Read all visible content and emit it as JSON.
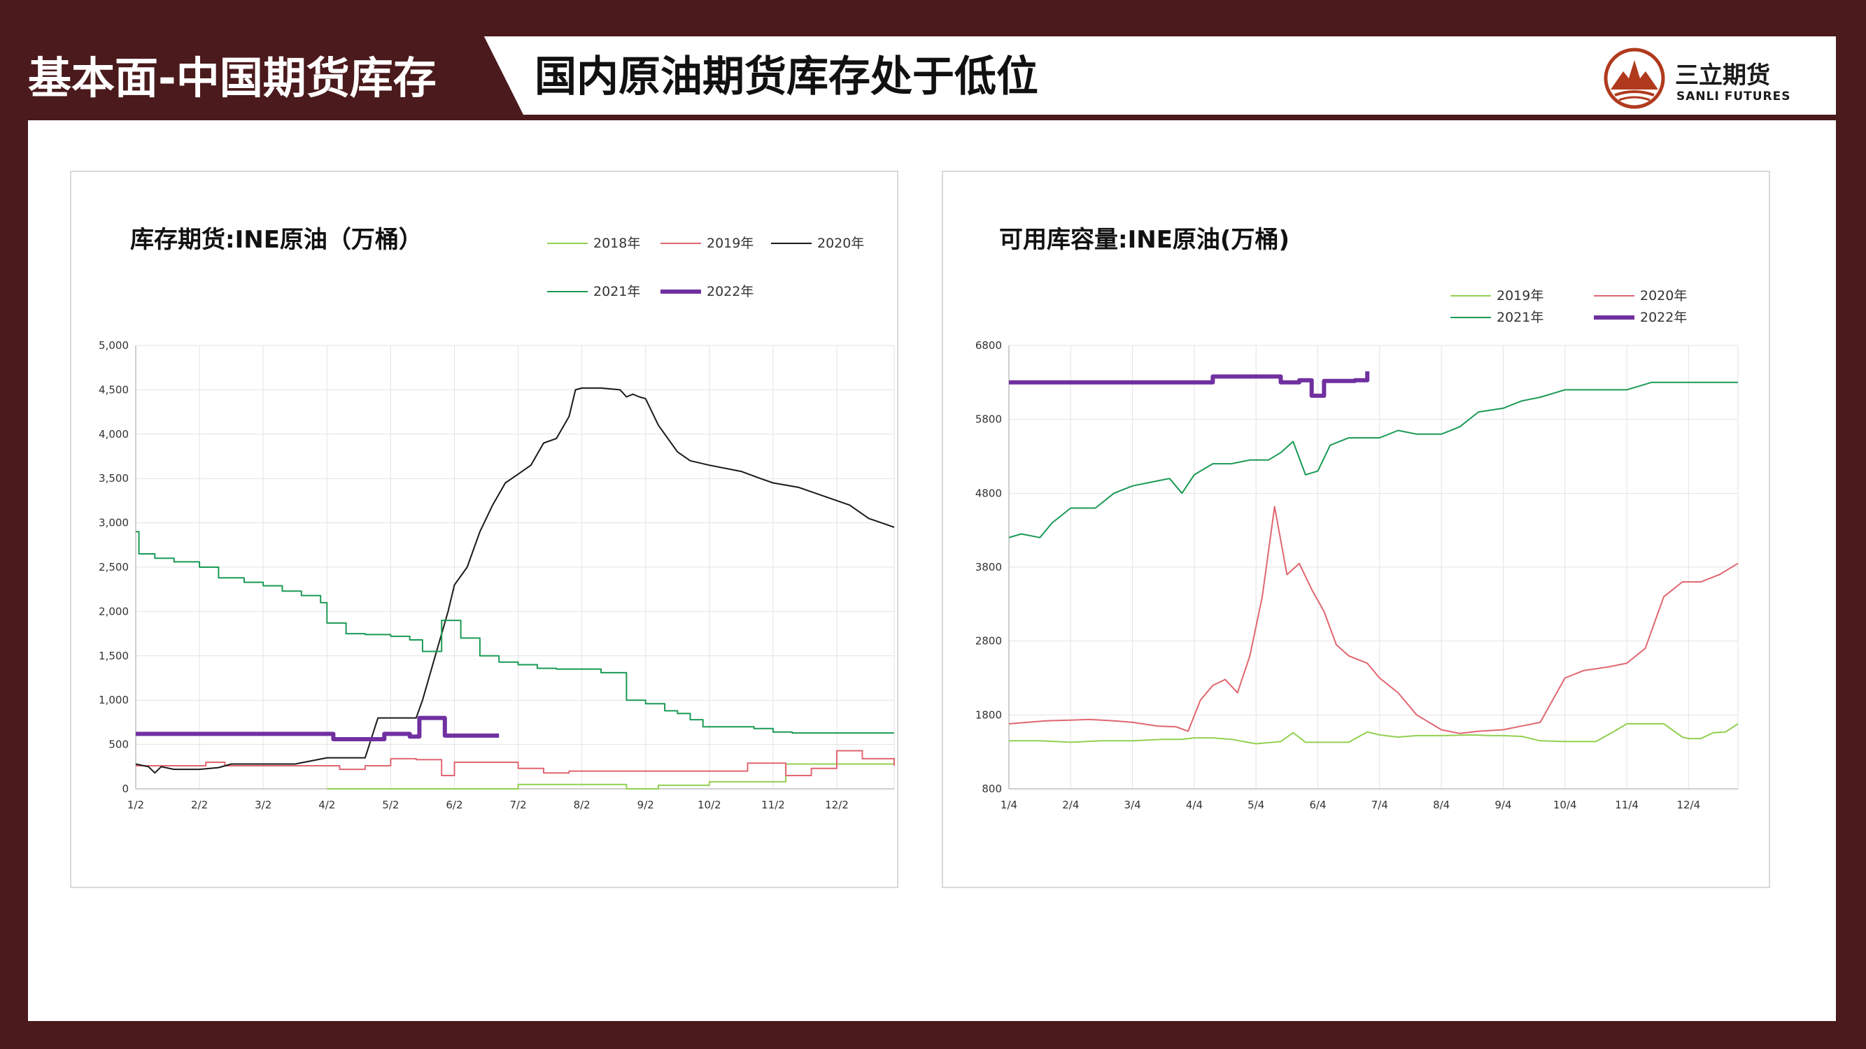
{
  "header": {
    "section_title": "基本面-中国期货库存",
    "page_title": "国内原油期货库存处于低位",
    "brand_name": "三立期货",
    "brand_en": "SANLI FUTURES",
    "brand_color": "#b03a1e",
    "frame_color": "#4a1a1c"
  },
  "chart_data": [
    {
      "type": "line",
      "title": "库存期货:INE原油（万桶）",
      "xlabel": "",
      "ylabel": "",
      "x_range": [
        1.0,
        12.9
      ],
      "ylim": [
        0,
        5000
      ],
      "y_ticks": [
        0,
        500,
        1000,
        1500,
        2000,
        2500,
        3000,
        3500,
        4000,
        4500,
        5000
      ],
      "y_tick_labels": [
        "0",
        "500",
        "1,000",
        "1,500",
        "2,000",
        "2,500",
        "3,000",
        "3,500",
        "4,000",
        "4,500",
        "5,000"
      ],
      "x_ticks": [
        1,
        2,
        3,
        4,
        5,
        6,
        7,
        8,
        9,
        10,
        11,
        12
      ],
      "x_tick_labels": [
        "1/2",
        "2/2",
        "3/2",
        "4/2",
        "5/2",
        "6/2",
        "7/2",
        "8/2",
        "9/2",
        "10/2",
        "11/2",
        "12/2"
      ],
      "grid": true,
      "legend_position": "top-right",
      "series": [
        {
          "name": "2018年",
          "color": "#92d050",
          "width": 2,
          "step": true,
          "x": [
            4.0,
            5.5,
            6.5,
            7.0,
            7.8,
            8.7,
            9.2,
            10.0,
            10.6,
            11.2,
            12.9
          ],
          "y": [
            0,
            0,
            0,
            50,
            50,
            0,
            40,
            80,
            80,
            280,
            280
          ]
        },
        {
          "name": "2019年",
          "color": "#e06670",
          "width": 2,
          "step": true,
          "x": [
            1.0,
            2.1,
            2.4,
            3.5,
            4.2,
            4.6,
            5.0,
            5.4,
            5.8,
            6.0,
            6.8,
            7.0,
            7.4,
            7.8,
            9.5,
            10.6,
            11.0,
            11.2,
            11.6,
            12.0,
            12.4,
            12.9
          ],
          "y": [
            260,
            300,
            260,
            260,
            220,
            260,
            340,
            330,
            150,
            300,
            300,
            230,
            180,
            200,
            200,
            290,
            290,
            150,
            230,
            430,
            340,
            260
          ]
        },
        {
          "name": "2020年",
          "color": "#1a1a1a",
          "width": 2,
          "step": false,
          "x": [
            1.0,
            1.2,
            1.3,
            1.4,
            1.6,
            1.8,
            2.0,
            2.3,
            2.5,
            3.0,
            3.5,
            4.0,
            4.3,
            4.6,
            4.8,
            5.0,
            5.2,
            5.4,
            5.5,
            5.7,
            5.9,
            6.0,
            6.2,
            6.4,
            6.6,
            6.8,
            7.0,
            7.2,
            7.4,
            7.6,
            7.8,
            7.9,
            8.0,
            8.3,
            8.6,
            8.7,
            8.8,
            8.9,
            9.0,
            9.2,
            9.5,
            9.7,
            10.0,
            10.5,
            10.8,
            11.0,
            11.4,
            11.8,
            12.2,
            12.5,
            12.9
          ],
          "y": [
            280,
            250,
            180,
            250,
            220,
            220,
            220,
            240,
            280,
            280,
            280,
            350,
            350,
            350,
            800,
            800,
            800,
            800,
            1000,
            1500,
            2000,
            2300,
            2500,
            2900,
            3200,
            3450,
            3550,
            3650,
            3900,
            3950,
            4200,
            4500,
            4520,
            4520,
            4500,
            4420,
            4450,
            4420,
            4400,
            4100,
            3800,
            3700,
            3650,
            3580,
            3500,
            3450,
            3400,
            3300,
            3200,
            3050,
            2950
          ]
        },
        {
          "name": "2021年",
          "color": "#1a9a55",
          "width": 2,
          "step": true,
          "x": [
            1.0,
            1.05,
            1.3,
            1.6,
            2.0,
            2.3,
            2.7,
            3.0,
            3.3,
            3.6,
            3.9,
            4.0,
            4.3,
            4.6,
            5.0,
            5.3,
            5.5,
            5.8,
            6.1,
            6.4,
            6.7,
            7.0,
            7.3,
            7.6,
            8.0,
            8.3,
            8.7,
            9.0,
            9.3,
            9.5,
            9.7,
            9.9,
            10.0,
            10.3,
            10.7,
            11.0,
            11.3,
            12.0,
            12.9
          ],
          "y": [
            2900,
            2650,
            2600,
            2560,
            2500,
            2380,
            2330,
            2290,
            2230,
            2180,
            2100,
            1870,
            1750,
            1740,
            1720,
            1680,
            1550,
            1900,
            1700,
            1500,
            1430,
            1400,
            1360,
            1350,
            1350,
            1310,
            1000,
            960,
            880,
            850,
            780,
            700,
            700,
            700,
            680,
            640,
            630,
            630,
            630
          ]
        },
        {
          "name": "2022年",
          "color": "#7030a0",
          "width": 6,
          "step": true,
          "x": [
            1.0,
            2.0,
            3.0,
            4.0,
            4.1,
            4.5,
            4.9,
            5.3,
            5.45,
            5.85,
            6.2,
            6.7
          ],
          "y": [
            620,
            620,
            620,
            620,
            560,
            560,
            620,
            590,
            800,
            600,
            600,
            600
          ]
        }
      ]
    },
    {
      "type": "line",
      "title": "可用库容量:INE原油(万桶)",
      "xlabel": "",
      "ylabel": "",
      "x_range": [
        1.0,
        12.8
      ],
      "ylim": [
        800,
        6800
      ],
      "y_ticks": [
        800,
        1800,
        2800,
        3800,
        4800,
        5800,
        6800
      ],
      "y_tick_labels": [
        "800",
        "1800",
        "2800",
        "3800",
        "4800",
        "5800",
        "6800"
      ],
      "x_ticks": [
        1,
        2,
        3,
        4,
        5,
        6,
        7,
        8,
        9,
        10,
        11,
        12
      ],
      "x_tick_labels": [
        "1/4",
        "2/4",
        "3/4",
        "4/4",
        "5/4",
        "6/4",
        "7/4",
        "8/4",
        "9/4",
        "10/4",
        "11/4",
        "12/4"
      ],
      "grid": true,
      "legend_position": "top-right",
      "series": [
        {
          "name": "2019年",
          "color": "#92d050",
          "width": 2,
          "step": false,
          "x": [
            1.0,
            1.5,
            2.0,
            2.5,
            3.0,
            3.5,
            3.8,
            4.0,
            4.3,
            4.6,
            5.0,
            5.4,
            5.6,
            5.8,
            6.0,
            6.5,
            6.8,
            7.0,
            7.3,
            7.6,
            8.0,
            8.5,
            8.8,
            9.0,
            9.3,
            9.6,
            10.0,
            10.3,
            10.5,
            10.8,
            11.0,
            11.3,
            11.6,
            11.9,
            12.0,
            12.2,
            12.4,
            12.6,
            12.8
          ],
          "y": [
            1450,
            1450,
            1430,
            1450,
            1450,
            1470,
            1470,
            1490,
            1490,
            1470,
            1410,
            1440,
            1560,
            1430,
            1430,
            1430,
            1570,
            1530,
            1500,
            1520,
            1520,
            1530,
            1520,
            1520,
            1510,
            1450,
            1440,
            1440,
            1440,
            1580,
            1680,
            1680,
            1680,
            1500,
            1480,
            1480,
            1560,
            1570,
            1680
          ]
        },
        {
          "name": "2020年",
          "color": "#e06670",
          "width": 2,
          "step": false,
          "x": [
            1.0,
            1.3,
            1.6,
            2.0,
            2.3,
            2.7,
            3.0,
            3.4,
            3.7,
            3.9,
            4.1,
            4.3,
            4.5,
            4.7,
            4.9,
            5.1,
            5.3,
            5.5,
            5.7,
            5.9,
            6.1,
            6.3,
            6.5,
            6.8,
            7.0,
            7.3,
            7.6,
            8.0,
            8.3,
            8.6,
            9.0,
            9.3,
            9.6,
            10.0,
            10.3,
            10.7,
            11.0,
            11.3,
            11.6,
            11.9,
            12.2,
            12.5,
            12.8
          ],
          "y": [
            1680,
            1700,
            1720,
            1730,
            1740,
            1720,
            1700,
            1650,
            1640,
            1580,
            2000,
            2200,
            2280,
            2100,
            2600,
            3400,
            4620,
            3700,
            3850,
            3500,
            3200,
            2750,
            2600,
            2500,
            2300,
            2100,
            1800,
            1600,
            1550,
            1580,
            1600,
            1650,
            1700,
            2300,
            2400,
            2450,
            2500,
            2700,
            3400,
            3600,
            3600,
            3700,
            3850
          ]
        },
        {
          "name": "2021年",
          "color": "#1a9a55",
          "width": 2,
          "step": false,
          "x": [
            1.0,
            1.2,
            1.5,
            1.7,
            2.0,
            2.4,
            2.7,
            3.0,
            3.3,
            3.6,
            3.8,
            4.0,
            4.3,
            4.6,
            4.9,
            5.2,
            5.4,
            5.6,
            5.8,
            6.0,
            6.2,
            6.5,
            6.8,
            7.0,
            7.3,
            7.6,
            8.0,
            8.3,
            8.6,
            9.0,
            9.3,
            9.6,
            10.0,
            10.4,
            10.8,
            11.0,
            11.4,
            11.8,
            12.2,
            12.5,
            12.8
          ],
          "y": [
            4200,
            4250,
            4200,
            4400,
            4600,
            4600,
            4800,
            4900,
            4950,
            5000,
            4800,
            5050,
            5200,
            5200,
            5250,
            5250,
            5350,
            5500,
            5050,
            5100,
            5450,
            5550,
            5550,
            5550,
            5650,
            5600,
            5600,
            5700,
            5900,
            5950,
            6050,
            6100,
            6200,
            6200,
            6200,
            6200,
            6300,
            6300,
            6300,
            6300,
            6300
          ]
        },
        {
          "name": "2022年",
          "color": "#7030a0",
          "width": 6,
          "step": true,
          "x": [
            1.0,
            2.0,
            3.0,
            4.0,
            4.3,
            4.5,
            5.0,
            5.4,
            5.7,
            5.9,
            6.1,
            6.3,
            6.6,
            6.8
          ],
          "y": [
            6300,
            6300,
            6300,
            6300,
            6380,
            6380,
            6380,
            6300,
            6330,
            6120,
            6320,
            6320,
            6330,
            6450
          ]
        }
      ]
    }
  ]
}
